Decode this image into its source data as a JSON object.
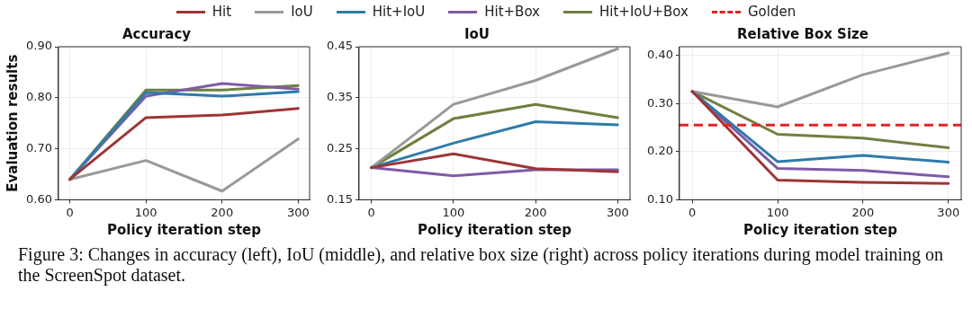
{
  "chart_data": [
    {
      "type": "line",
      "title": "Accuracy",
      "xlabel": "Policy iteration step",
      "ylabel": "Evaluation results",
      "x": [
        0,
        100,
        200,
        300
      ],
      "xlim": [
        -15,
        315
      ],
      "xticks": [
        0,
        100,
        200,
        300
      ],
      "ylim": [
        0.6,
        0.9
      ],
      "yticks": [
        {
          "value": 0.6,
          "label": "0.60"
        },
        {
          "value": 0.7,
          "label": "0.70"
        },
        {
          "value": 0.8,
          "label": "0.80"
        },
        {
          "value": 0.9,
          "label": "0.90"
        }
      ],
      "grid": true,
      "legend": "top",
      "marker": "none",
      "line_style": "solid",
      "series": [
        {
          "name": "Hit",
          "color": "#9e3535",
          "values": [
            0.64,
            0.761,
            0.766,
            0.779
          ]
        },
        {
          "name": "IoU",
          "color": "#999999",
          "values": [
            0.64,
            0.677,
            0.617,
            0.719
          ]
        },
        {
          "name": "Hit+IoU",
          "color": "#2e7bab",
          "values": [
            0.64,
            0.81,
            0.803,
            0.812
          ]
        },
        {
          "name": "Hit+Box",
          "color": "#7e5ba8",
          "values": [
            0.64,
            0.803,
            0.828,
            0.817
          ]
        },
        {
          "name": "Hit+IoU+Box",
          "color": "#6f8040",
          "values": [
            0.64,
            0.815,
            0.815,
            0.824
          ]
        }
      ]
    },
    {
      "type": "line",
      "title": "IoU",
      "xlabel": "Policy iteration step",
      "x": [
        0,
        100,
        200,
        300
      ],
      "xlim": [
        -15,
        315
      ],
      "xticks": [
        0,
        100,
        200,
        300
      ],
      "ylim": [
        0.15,
        0.45
      ],
      "yticks": [
        0.15,
        0.25,
        0.35,
        0.45
      ],
      "grid": true,
      "marker": "none",
      "line_style": "solid",
      "series": [
        {
          "color": "#9e3535",
          "values": [
            0.213,
            0.24,
            0.211,
            0.205
          ]
        },
        {
          "color": "#999999",
          "values": [
            0.213,
            0.337,
            0.384,
            0.446
          ]
        },
        {
          "color": "#2e7bab",
          "values": [
            0.213,
            0.261,
            0.303,
            0.297
          ]
        },
        {
          "color": "#7e5ba8",
          "values": [
            0.213,
            0.197,
            0.209,
            0.209
          ]
        },
        {
          "color": "#6f8040",
          "values": [
            0.213,
            0.309,
            0.337,
            0.311
          ]
        }
      ]
    },
    {
      "type": "line",
      "title": "Relative Box Size",
      "xlabel": "Policy iteration step",
      "x": [
        0,
        100,
        200,
        300
      ],
      "xlim": [
        -15,
        315
      ],
      "xticks": [
        0,
        100,
        200,
        300
      ],
      "ylim": [
        0.1,
        0.418
      ],
      "yticks": [
        {
          "value": 0.1,
          "label": "0.10"
        },
        {
          "value": 0.2,
          "label": "0.20"
        },
        {
          "value": 0.3,
          "label": "0.30"
        },
        {
          "value": 0.4,
          "label": "0.40"
        }
      ],
      "grid": true,
      "marker": "none",
      "line_style": "solid",
      "series": [
        {
          "color": "#9e3535",
          "values": [
            0.325,
            0.141,
            0.136,
            0.134
          ]
        },
        {
          "color": "#999999",
          "values": [
            0.325,
            0.293,
            0.36,
            0.405
          ]
        },
        {
          "color": "#2e7bab",
          "values": [
            0.325,
            0.179,
            0.192,
            0.178
          ]
        },
        {
          "color": "#7e5ba8",
          "values": [
            0.325,
            0.165,
            0.161,
            0.148
          ]
        },
        {
          "color": "#6f8040",
          "values": [
            0.325,
            0.236,
            0.228,
            0.208
          ]
        }
      ],
      "ref_lines": [
        {
          "axis": "y",
          "value": 0.255,
          "label": "Golden",
          "color": "#e02424",
          "line_style": "dashed"
        }
      ],
      "annotations": [
        "Figure 3: Changes in accuracy (left), IoU (middle), and relative box size (right) across policy iterations during model training on the ScreenSpot dataset."
      ]
    }
  ]
}
